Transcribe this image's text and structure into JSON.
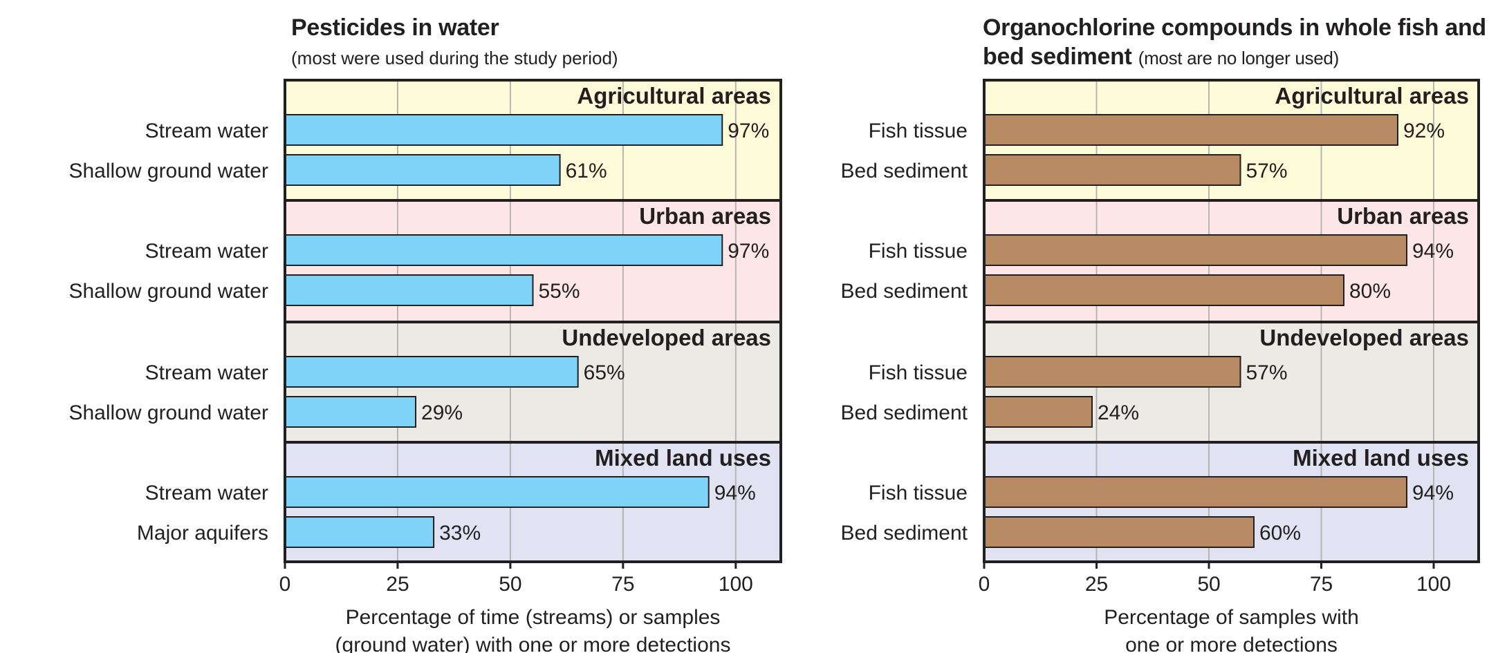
{
  "chart_data": [
    {
      "type": "bar",
      "orientation": "horizontal",
      "title": "Pesticides in water",
      "subtitle": "(most were used during the study period)",
      "xlabel": [
        "Percentage of time (streams) or samples",
        "(ground water) with one or more detections"
      ],
      "xlim": [
        0,
        110
      ],
      "xticks": [
        0,
        25,
        50,
        75,
        100
      ],
      "value_suffix": "%",
      "bar_color": "#7dd4f8",
      "groups": [
        {
          "name": "Agricultural areas",
          "bg": "#fdfcd8",
          "bars": [
            {
              "label": "Stream water",
              "value": 97
            },
            {
              "label": "Shallow ground water",
              "value": 61
            }
          ]
        },
        {
          "name": "Urban areas",
          "bg": "#fce6e8",
          "bars": [
            {
              "label": "Stream water",
              "value": 97
            },
            {
              "label": "Shallow ground water",
              "value": 55
            }
          ]
        },
        {
          "name": "Undeveloped areas",
          "bg": "#ebeae4",
          "bars": [
            {
              "label": "Stream water",
              "value": 65
            },
            {
              "label": "Shallow ground water",
              "value": 29
            }
          ]
        },
        {
          "name": "Mixed land uses",
          "bg": "#e1e3f2",
          "bars": [
            {
              "label": "Stream water",
              "value": 94
            },
            {
              "label": "Major aquifers",
              "value": 33
            }
          ]
        }
      ]
    },
    {
      "type": "bar",
      "orientation": "horizontal",
      "title": "Organochlorine compounds in whole fish and",
      "title_line2": "bed sediment",
      "subtitle": "(most are no longer used)",
      "xlabel": [
        "Percentage of samples with",
        "one or more detections"
      ],
      "xlim": [
        0,
        110
      ],
      "xticks": [
        0,
        25,
        50,
        75,
        100
      ],
      "value_suffix": "%",
      "bar_color": "#b88a63",
      "groups": [
        {
          "name": "Agricultural areas",
          "bg": "#fdfcd8",
          "bars": [
            {
              "label": "Fish tissue",
              "value": 92
            },
            {
              "label": "Bed sediment",
              "value": 57
            }
          ]
        },
        {
          "name": "Urban areas",
          "bg": "#fce6e8",
          "bars": [
            {
              "label": "Fish tissue",
              "value": 94
            },
            {
              "label": "Bed sediment",
              "value": 80
            }
          ]
        },
        {
          "name": "Undeveloped areas",
          "bg": "#ebeae4",
          "bars": [
            {
              "label": "Fish tissue",
              "value": 57
            },
            {
              "label": "Bed sediment",
              "value": 24
            }
          ]
        },
        {
          "name": "Mixed land uses",
          "bg": "#e1e3f2",
          "bars": [
            {
              "label": "Fish tissue",
              "value": 94
            },
            {
              "label": "Bed sediment",
              "value": 60
            }
          ]
        }
      ]
    }
  ]
}
